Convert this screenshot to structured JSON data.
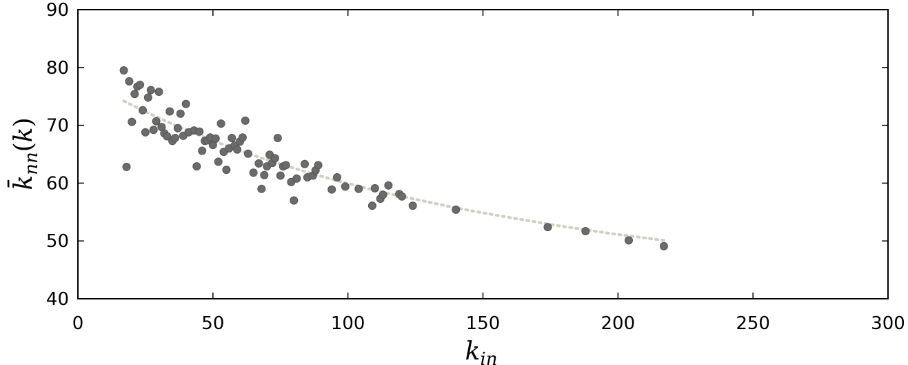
{
  "chart_data": {
    "type": "scatter",
    "xlabel": "k_in",
    "ylabel": "k̄_nn(k)",
    "xlim": [
      0,
      300
    ],
    "ylim": [
      40,
      90
    ],
    "xticks": [
      0,
      50,
      100,
      150,
      200,
      250,
      300
    ],
    "yticks": [
      40,
      50,
      60,
      70,
      80,
      90
    ],
    "grid": false,
    "series": [
      {
        "kind": "points",
        "color": "#6b6b6b",
        "x": [
          17,
          18,
          19,
          20,
          21,
          22,
          23,
          24,
          25,
          26,
          27,
          28,
          29,
          30,
          31,
          32,
          33,
          34,
          35,
          36,
          37,
          38,
          39,
          40,
          41,
          43,
          44,
          45,
          46,
          47,
          48,
          49,
          50,
          51,
          52,
          53,
          54,
          55,
          56,
          57,
          58,
          59,
          60,
          61,
          62,
          63,
          65,
          67,
          68,
          69,
          70,
          71,
          72,
          73,
          74,
          75,
          76,
          77,
          79,
          80,
          81,
          84,
          85,
          87,
          88,
          89,
          94,
          96,
          99,
          104,
          109,
          110,
          112,
          113,
          115,
          119,
          120,
          124,
          140,
          174,
          188,
          204,
          217
        ],
        "y": [
          79.5,
          62.8,
          77.6,
          70.6,
          75.4,
          76.7,
          77.0,
          72.6,
          68.8,
          74.8,
          76.1,
          69.2,
          70.7,
          75.8,
          69.7,
          68.6,
          68.1,
          72.4,
          67.3,
          67.8,
          69.5,
          72.0,
          68.2,
          73.7,
          68.8,
          69.1,
          62.9,
          68.9,
          65.6,
          67.3,
          67.4,
          67.9,
          66.6,
          67.7,
          63.7,
          70.3,
          65.4,
          62.3,
          66.0,
          67.8,
          66.5,
          65.8,
          67.2,
          67.9,
          70.8,
          65.1,
          61.8,
          63.4,
          59.0,
          61.4,
          62.9,
          64.9,
          63.5,
          64.3,
          67.8,
          61.3,
          62.9,
          63.1,
          60.2,
          57.0,
          60.8,
          63.3,
          61.0,
          61.3,
          62.2,
          63.1,
          58.9,
          61.0,
          59.4,
          59.0,
          56.1,
          59.1,
          57.3,
          58.0,
          59.6,
          58.1,
          57.7,
          56.1,
          55.4,
          52.4,
          51.7,
          50.1,
          49.1
        ]
      },
      {
        "kind": "fit",
        "color": "#cfcfc6",
        "style": "dotted",
        "x": [
          17,
          27,
          37,
          47,
          57,
          67,
          77,
          87,
          97,
          107,
          117,
          127,
          137,
          147,
          157,
          167,
          177,
          187,
          197,
          207,
          217
        ],
        "y": [
          74.2,
          71.9,
          69.8,
          67.9,
          66.1,
          64.5,
          63.0,
          61.6,
          60.3,
          59.1,
          58.0,
          57.0,
          56.0,
          55.1,
          54.3,
          53.5,
          52.7,
          52.0,
          51.3,
          50.7,
          50.1
        ]
      }
    ]
  }
}
